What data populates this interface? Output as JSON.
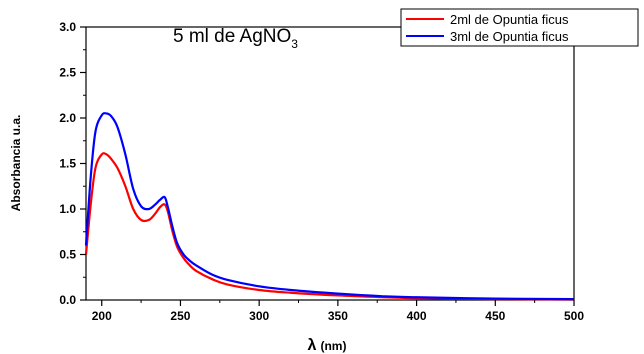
{
  "chart_data": {
    "type": "line",
    "title": {
      "main": "5 ml de AgNO",
      "subscript": "3"
    },
    "xlabel": {
      "symbol": "λ",
      "unit": "(nm)"
    },
    "ylabel": "Absorbancia u.a.",
    "xlim": [
      190,
      500
    ],
    "ylim": [
      0,
      3.0
    ],
    "x_ticks": [
      200,
      250,
      300,
      350,
      400,
      450,
      500
    ],
    "y_ticks": [
      0.0,
      0.5,
      1.0,
      1.5,
      2.0,
      2.5,
      3.0
    ],
    "x_tick_labels": [
      "200",
      "250",
      "300",
      "350",
      "400",
      "450",
      "500"
    ],
    "y_tick_labels": [
      "0.0",
      "0.5",
      "1.0",
      "1.5",
      "2.0",
      "2.5",
      "3.0"
    ],
    "grid": false,
    "legend_position": "top-right",
    "series": [
      {
        "name": "2ml de Opuntia ficus",
        "color": "#ff0000",
        "x": [
          190,
          193,
          196,
          200,
          203,
          206,
          210,
          215,
          220,
          225,
          230,
          234,
          237,
          240,
          242,
          245,
          248,
          252,
          256,
          260,
          270,
          280,
          300,
          320,
          350,
          380,
          400,
          450,
          500
        ],
        "y": [
          0.5,
          1.05,
          1.45,
          1.6,
          1.6,
          1.55,
          1.45,
          1.25,
          1.0,
          0.88,
          0.88,
          0.95,
          1.02,
          1.05,
          0.97,
          0.75,
          0.58,
          0.46,
          0.38,
          0.32,
          0.23,
          0.17,
          0.11,
          0.08,
          0.05,
          0.03,
          0.02,
          0.01,
          0.005
        ]
      },
      {
        "name": "3ml de Opuntia ficus",
        "color": "#0000ff",
        "x": [
          190,
          193,
          196,
          200,
          203,
          206,
          210,
          215,
          220,
          225,
          230,
          234,
          237,
          240,
          242,
          245,
          248,
          252,
          256,
          260,
          270,
          280,
          300,
          320,
          350,
          380,
          400,
          450,
          500
        ],
        "y": [
          0.6,
          1.35,
          1.85,
          2.03,
          2.05,
          2.02,
          1.9,
          1.6,
          1.22,
          1.03,
          1.0,
          1.05,
          1.1,
          1.13,
          1.02,
          0.8,
          0.62,
          0.5,
          0.43,
          0.38,
          0.28,
          0.22,
          0.15,
          0.11,
          0.07,
          0.04,
          0.03,
          0.015,
          0.01
        ]
      }
    ]
  }
}
